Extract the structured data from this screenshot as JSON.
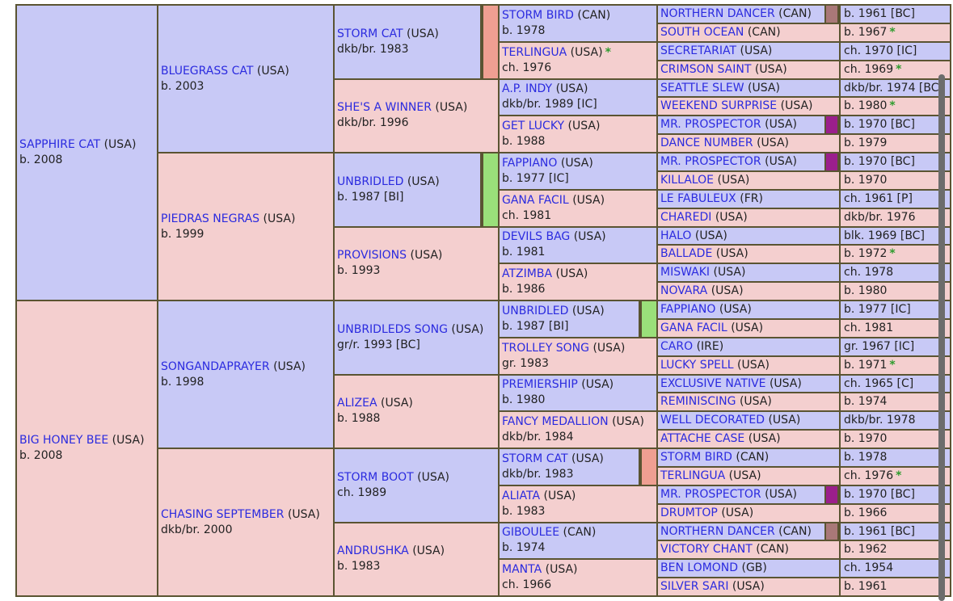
{
  "colors": {
    "male": "#c8c9f6",
    "female": "#f4cfcf",
    "link": "#2b2bdf",
    "border": "#5a5432",
    "star": "#2e9c2e"
  },
  "gen1": [
    {
      "name": "SAPPHIRE CAT",
      "country": "(USA)",
      "sub": "b. 2008",
      "sex": "m"
    },
    {
      "name": "BIG HONEY BEE",
      "country": "(USA)",
      "sub": "b. 2008",
      "sex": "f"
    }
  ],
  "gen2": [
    {
      "name": "BLUEGRASS CAT",
      "country": "(USA)",
      "sub": "b. 2003",
      "sex": "m"
    },
    {
      "name": "PIEDRAS NEGRAS",
      "country": "(USA)",
      "sub": "b. 1999",
      "sex": "f"
    },
    {
      "name": "SONGANDAPRAYER",
      "country": "(USA)",
      "sub": "b. 1998",
      "sex": "m"
    },
    {
      "name": "CHASING SEPTEMBER",
      "country": "(USA)",
      "sub": "dkb/br. 2000",
      "sex": "f"
    }
  ],
  "gen3": [
    {
      "name": "STORM CAT",
      "country": "(USA)",
      "sub": "dkb/br. 1983",
      "sex": "m",
      "marker": "#ef9f92"
    },
    {
      "name": "SHE'S A WINNER",
      "country": "(USA)",
      "sub": "dkb/br. 1996",
      "sex": "f"
    },
    {
      "name": "UNBRIDLED",
      "country": "(USA)",
      "sub": "b. 1987 [BI]",
      "sex": "m",
      "marker": "#9ae07a"
    },
    {
      "name": "PROVISIONS",
      "country": "(USA)",
      "sub": "b. 1993",
      "sex": "f"
    },
    {
      "name": "UNBRIDLEDS SONG",
      "country": "(USA)",
      "sub": "gr/r. 1993 [BC]",
      "sex": "m"
    },
    {
      "name": "ALIZEA",
      "country": "(USA)",
      "sub": "b. 1988",
      "sex": "f"
    },
    {
      "name": "STORM BOOT",
      "country": "(USA)",
      "sub": "ch. 1989",
      "sex": "m"
    },
    {
      "name": "ANDRUSHKA",
      "country": "(USA)",
      "sub": "b. 1983",
      "sex": "f"
    }
  ],
  "gen4": [
    {
      "name": "STORM BIRD",
      "country": "(CAN)",
      "sub": "b. 1978",
      "sex": "m"
    },
    {
      "name": "TERLINGUA",
      "country": "(USA)",
      "star": "*",
      "sub": "ch. 1976",
      "sex": "f"
    },
    {
      "name": "A.P. INDY",
      "country": "(USA)",
      "sub": "dkb/br. 1989 [IC]",
      "sex": "m"
    },
    {
      "name": "GET LUCKY",
      "country": "(USA)",
      "sub": "b. 1988",
      "sex": "f"
    },
    {
      "name": "FAPPIANO",
      "country": "(USA)",
      "sub": "b. 1977 [IC]",
      "sex": "m"
    },
    {
      "name": "GANA FACIL",
      "country": "(USA)",
      "sub": "ch. 1981",
      "sex": "f"
    },
    {
      "name": "DEVILS BAG",
      "country": "(USA)",
      "sub": "b. 1981",
      "sex": "m"
    },
    {
      "name": "ATZIMBA",
      "country": "(USA)",
      "sub": "b. 1986",
      "sex": "f"
    },
    {
      "name": "UNBRIDLED",
      "country": "(USA)",
      "sub": "b. 1987 [BI]",
      "sex": "m",
      "marker": "#9ae07a"
    },
    {
      "name": "TROLLEY SONG",
      "country": "(USA)",
      "sub": "gr. 1983",
      "sex": "f"
    },
    {
      "name": "PREMIERSHIP",
      "country": "(USA)",
      "sub": "b. 1980",
      "sex": "m"
    },
    {
      "name": "FANCY MEDALLION",
      "country": "(USA)",
      "sub": "dkb/br. 1984",
      "sex": "f"
    },
    {
      "name": "STORM CAT",
      "country": "(USA)",
      "sub": "dkb/br. 1983",
      "sex": "m",
      "marker": "#ef9f92"
    },
    {
      "name": "ALIATA",
      "country": "(USA)",
      "sub": "b. 1983",
      "sex": "f"
    },
    {
      "name": "GIBOULEE",
      "country": "(CAN)",
      "sub": "b. 1974",
      "sex": "m"
    },
    {
      "name": "MANTA",
      "country": "(USA)",
      "sub": "ch. 1966",
      "sex": "f"
    }
  ],
  "gen5": [
    {
      "name": "NORTHERN DANCER",
      "country": "(CAN)",
      "sub": "b. 1961 [BC]",
      "sex": "m",
      "marker": "#a97878"
    },
    {
      "name": "SOUTH OCEAN",
      "country": "(CAN)",
      "sub": "b. 1967",
      "star": "*",
      "sex": "f"
    },
    {
      "name": "SECRETARIAT",
      "country": "(USA)",
      "sub": "ch. 1970 [IC]",
      "sex": "m"
    },
    {
      "name": "CRIMSON SAINT",
      "country": "(USA)",
      "sub": "ch. 1969",
      "star": "*",
      "sex": "f"
    },
    {
      "name": "SEATTLE SLEW",
      "country": "(USA)",
      "sub": "dkb/br. 1974 [BC]",
      "sex": "m"
    },
    {
      "name": "WEEKEND SURPRISE",
      "country": "(USA)",
      "sub": "b. 1980",
      "star": "*",
      "sex": "f"
    },
    {
      "name": "MR. PROSPECTOR",
      "country": "(USA)",
      "sub": "b. 1970 [BC]",
      "sex": "m",
      "marker": "#9b1f8c"
    },
    {
      "name": "DANCE NUMBER",
      "country": "(USA)",
      "sub": "b. 1979",
      "sex": "f"
    },
    {
      "name": "MR. PROSPECTOR",
      "country": "(USA)",
      "sub": "b. 1970 [BC]",
      "sex": "m",
      "marker": "#9b1f8c"
    },
    {
      "name": "KILLALOE",
      "country": "(USA)",
      "sub": "b. 1970",
      "sex": "f"
    },
    {
      "name": "LE FABULEUX",
      "country": "(FR)",
      "sub": "ch. 1961 [P]",
      "sex": "m"
    },
    {
      "name": "CHAREDI",
      "country": "(USA)",
      "sub": "dkb/br. 1976",
      "sex": "f"
    },
    {
      "name": "HALO",
      "country": "(USA)",
      "sub": "blk. 1969 [BC]",
      "sex": "m"
    },
    {
      "name": "BALLADE",
      "country": "(USA)",
      "sub": "b. 1972",
      "star": "*",
      "sex": "f"
    },
    {
      "name": "MISWAKI",
      "country": "(USA)",
      "sub": "ch. 1978",
      "sex": "m"
    },
    {
      "name": "NOVARA",
      "country": "(USA)",
      "sub": "b. 1980",
      "sex": "f"
    },
    {
      "name": "FAPPIANO",
      "country": "(USA)",
      "sub": "b. 1977 [IC]",
      "sex": "m"
    },
    {
      "name": "GANA FACIL",
      "country": "(USA)",
      "sub": "ch. 1981",
      "sex": "f"
    },
    {
      "name": "CARO",
      "country": "(IRE)",
      "sub": "gr. 1967 [IC]",
      "sex": "m"
    },
    {
      "name": "LUCKY SPELL",
      "country": "(USA)",
      "sub": "b. 1971",
      "star": "*",
      "sex": "f"
    },
    {
      "name": "EXCLUSIVE NATIVE",
      "country": "(USA)",
      "sub": "ch. 1965 [C]",
      "sex": "m"
    },
    {
      "name": "REMINISCING",
      "country": "(USA)",
      "sub": "b. 1974",
      "sex": "f"
    },
    {
      "name": "WELL DECORATED",
      "country": "(USA)",
      "sub": "dkb/br. 1978",
      "sex": "m"
    },
    {
      "name": "ATTACHE CASE",
      "country": "(USA)",
      "sub": "b. 1970",
      "sex": "f"
    },
    {
      "name": "STORM BIRD",
      "country": "(CAN)",
      "sub": "b. 1978",
      "sex": "m"
    },
    {
      "name": "TERLINGUA",
      "country": "(USA)",
      "sub": "ch. 1976",
      "star": "*",
      "sex": "f"
    },
    {
      "name": "MR. PROSPECTOR",
      "country": "(USA)",
      "sub": "b. 1970 [BC]",
      "sex": "m",
      "marker": "#9b1f8c"
    },
    {
      "name": "DRUMTOP",
      "country": "(USA)",
      "sub": "b. 1966",
      "sex": "f"
    },
    {
      "name": "NORTHERN DANCER",
      "country": "(CAN)",
      "sub": "b. 1961 [BC]",
      "sex": "m",
      "marker": "#a97878"
    },
    {
      "name": "VICTORY CHANT",
      "country": "(CAN)",
      "sub": "b. 1962",
      "sex": "f"
    },
    {
      "name": "BEN LOMOND",
      "country": "(GB)",
      "sub": "ch. 1954",
      "sex": "m"
    },
    {
      "name": "SILVER SARI",
      "country": "(USA)",
      "sub": "b. 1961",
      "sex": "f"
    }
  ]
}
